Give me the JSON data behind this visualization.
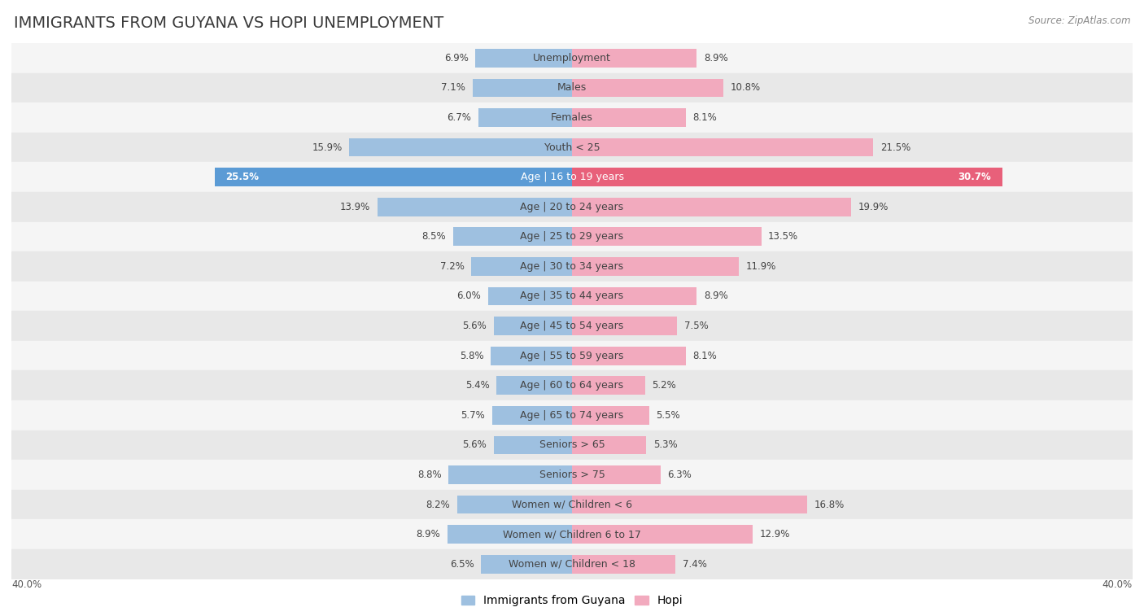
{
  "title": "IMMIGRANTS FROM GUYANA VS HOPI UNEMPLOYMENT",
  "source": "Source: ZipAtlas.com",
  "categories": [
    "Unemployment",
    "Males",
    "Females",
    "Youth < 25",
    "Age | 16 to 19 years",
    "Age | 20 to 24 years",
    "Age | 25 to 29 years",
    "Age | 30 to 34 years",
    "Age | 35 to 44 years",
    "Age | 45 to 54 years",
    "Age | 55 to 59 years",
    "Age | 60 to 64 years",
    "Age | 65 to 74 years",
    "Seniors > 65",
    "Seniors > 75",
    "Women w/ Children < 6",
    "Women w/ Children 6 to 17",
    "Women w/ Children < 18"
  ],
  "guyana_values": [
    6.9,
    7.1,
    6.7,
    15.9,
    25.5,
    13.9,
    8.5,
    7.2,
    6.0,
    5.6,
    5.8,
    5.4,
    5.7,
    5.6,
    8.8,
    8.2,
    8.9,
    6.5
  ],
  "hopi_values": [
    8.9,
    10.8,
    8.1,
    21.5,
    30.7,
    19.9,
    13.5,
    11.9,
    8.9,
    7.5,
    8.1,
    5.2,
    5.5,
    5.3,
    6.3,
    16.8,
    12.9,
    7.4
  ],
  "guyana_color": "#9ec0e0",
  "hopi_color": "#f2aabe",
  "guyana_highlight_color": "#5b9bd5",
  "hopi_highlight_color": "#e8607a",
  "highlight_row": 4,
  "xlim": 40.0,
  "bar_height": 0.62,
  "row_colors": [
    "#f5f5f5",
    "#e8e8e8"
  ],
  "title_fontsize": 14,
  "label_fontsize": 9,
  "value_fontsize": 8.5,
  "legend_fontsize": 10,
  "source_fontsize": 8.5
}
